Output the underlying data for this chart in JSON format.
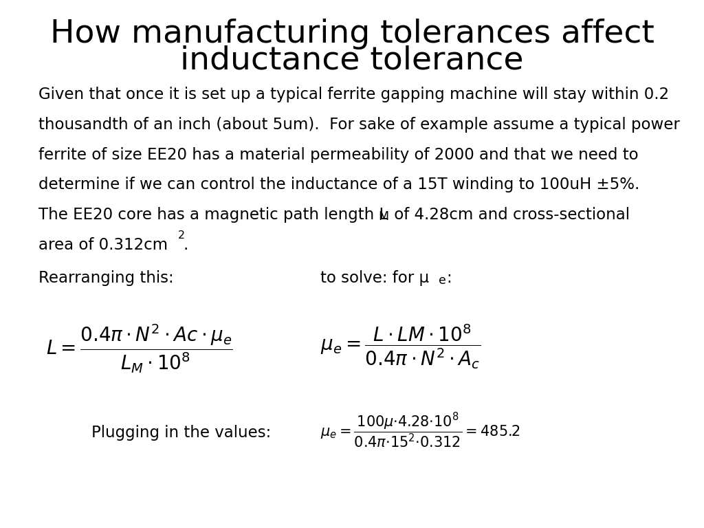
{
  "title_line1": "How manufacturing tolerances affect",
  "title_line2": "inductance tolerance",
  "title_fontsize": 34,
  "body_fontsize": 16.5,
  "math_fs": 20,
  "small_math_fs": 15,
  "background": "#ffffff",
  "text_color": "#000000",
  "para1_lines": [
    "Given that once it is set up a typical ferrite gapping machine will stay within 0.2",
    "thousandth of an inch (about 5um).  For sake of example assume a typical power",
    "ferrite of size EE20 has a material permeability of 2000 and that we need to",
    "determine if we can control the inductance of a 15T winding to 100uH ±5%."
  ],
  "rearranging": "Rearranging this:",
  "to_solve": "to solve: for μ",
  "plugging": "Plugging in the values:"
}
